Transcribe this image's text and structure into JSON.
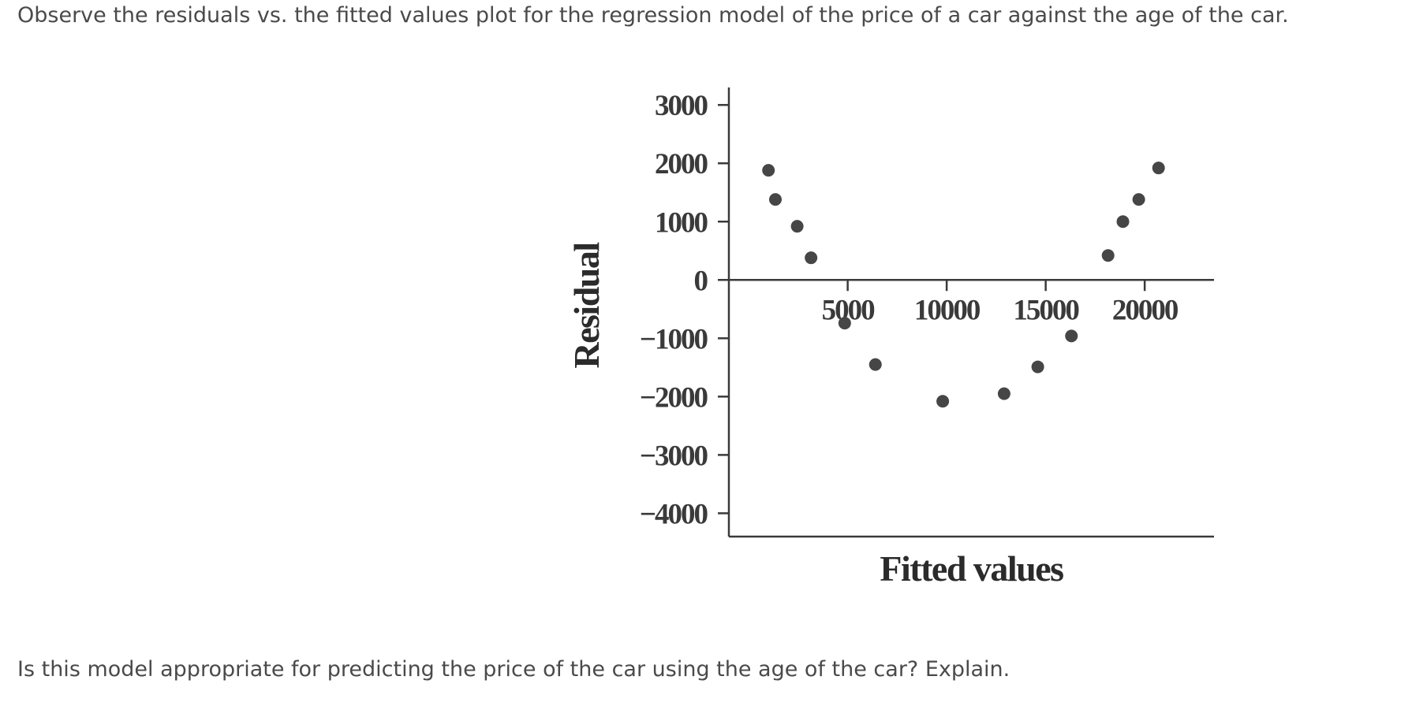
{
  "intro_text": "Observe the residuals vs. the fitted values plot for the regression model of the price of a car against the age of the car.",
  "question_text": "Is this model appropriate for predicting the price of the car using the age of the car? Explain.",
  "chart_data": {
    "type": "scatter",
    "title": "",
    "xlabel": "Fitted values",
    "ylabel": "Residual",
    "xlim": [
      -1000,
      23500
    ],
    "ylim": [
      -4400,
      3300
    ],
    "xticks": [
      5000,
      10000,
      15000,
      20000
    ],
    "xtick_labels": [
      "5000",
      "10000",
      "15000",
      "20000"
    ],
    "yticks": [
      3000,
      2000,
      1000,
      0,
      -1000,
      -2000,
      -3000,
      -4000
    ],
    "ytick_labels": [
      "3000",
      "2000",
      "1000",
      "0",
      "−1000",
      "−2000",
      "−3000",
      "−4000"
    ],
    "grid": false,
    "legend": "none",
    "points": [
      {
        "x": 1000,
        "y": 1880
      },
      {
        "x": 1350,
        "y": 1380
      },
      {
        "x": 2450,
        "y": 920
      },
      {
        "x": 3150,
        "y": 380
      },
      {
        "x": 4850,
        "y": -740
      },
      {
        "x": 6400,
        "y": -1450
      },
      {
        "x": 9800,
        "y": -2080
      },
      {
        "x": 12900,
        "y": -1950
      },
      {
        "x": 14600,
        "y": -1490
      },
      {
        "x": 16300,
        "y": -960
      },
      {
        "x": 18150,
        "y": 420
      },
      {
        "x": 18900,
        "y": 1000
      },
      {
        "x": 19700,
        "y": 1380
      },
      {
        "x": 20700,
        "y": 1920
      }
    ],
    "colors": {
      "point": "#464646",
      "axis": "#3a3a3a"
    }
  }
}
